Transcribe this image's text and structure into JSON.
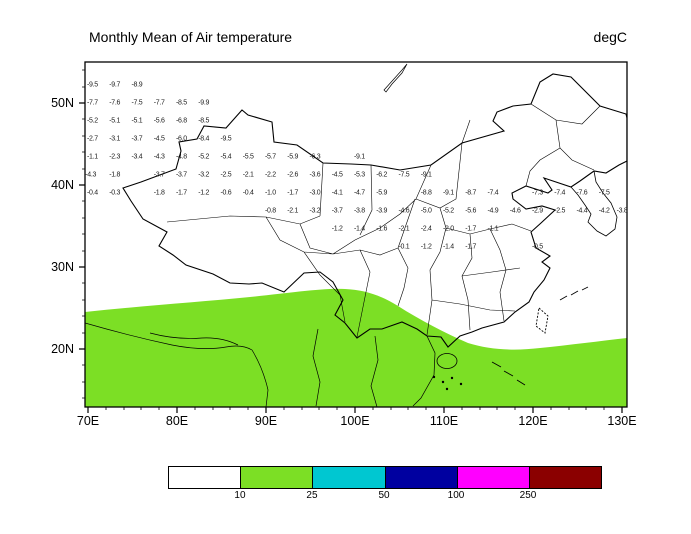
{
  "header": {
    "title": "Monthly Mean of Air temperature",
    "units": "degC"
  },
  "axes": {
    "lat_ticks": [
      {
        "label": "50N"
      },
      {
        "label": "40N"
      },
      {
        "label": "30N"
      },
      {
        "label": "20N"
      }
    ],
    "lon_ticks": [
      {
        "label": "70E"
      },
      {
        "label": "80E"
      },
      {
        "label": "90E"
      },
      {
        "label": "100E"
      },
      {
        "label": "110E"
      },
      {
        "label": "120E"
      },
      {
        "label": "130E"
      }
    ]
  },
  "colorbar": {
    "segments": [
      {
        "color": "#FFFFFF"
      },
      {
        "color": "#7CDF25"
      },
      {
        "color": "#00C7D1"
      },
      {
        "color": "#0000A0"
      },
      {
        "color": "#FF00FF"
      },
      {
        "color": "#8B0000"
      }
    ],
    "labels": [
      "10",
      "25",
      "50",
      "100",
      "250"
    ]
  },
  "chart_data": {
    "type": "heatmap",
    "title": "Monthly Mean of Air temperature",
    "units": "degC",
    "region": "China map with gridded station values",
    "lon_ticks": [
      70,
      80,
      90,
      100,
      110,
      120,
      130
    ],
    "lat_ticks": [
      20,
      30,
      40,
      50
    ],
    "colorbar_levels": [
      10,
      25,
      50,
      100,
      250
    ],
    "colorbar_colors": [
      "#FFFFFF",
      "#7CDF25",
      "#00C7D1",
      "#0000A0",
      "#FF00FF",
      "#8B0000"
    ],
    "filled_region": {
      "color": "#7CDF25",
      "meaning": "shaded contour band covering the area south of roughly 25N"
    },
    "points": [
      {
        "lon": 70.5,
        "lat": 52.2,
        "v": "-9.5"
      },
      {
        "lon": 73,
        "lat": 52.2,
        "v": "-9.7"
      },
      {
        "lon": 75.5,
        "lat": 52.2,
        "v": "-8.9"
      },
      {
        "lon": 70.5,
        "lat": 50,
        "v": "-7.7"
      },
      {
        "lon": 73,
        "lat": 50,
        "v": "-7.6"
      },
      {
        "lon": 75.5,
        "lat": 50,
        "v": "-7.5"
      },
      {
        "lon": 78,
        "lat": 50,
        "v": "-7.7"
      },
      {
        "lon": 80.5,
        "lat": 50,
        "v": "-8.5"
      },
      {
        "lon": 83,
        "lat": 50,
        "v": "-9.9"
      },
      {
        "lon": 70.5,
        "lat": 47.8,
        "v": "-5.2"
      },
      {
        "lon": 73,
        "lat": 47.8,
        "v": "-5.1"
      },
      {
        "lon": 75.5,
        "lat": 47.8,
        "v": "-5.1"
      },
      {
        "lon": 78,
        "lat": 47.8,
        "v": "-5.6"
      },
      {
        "lon": 80.5,
        "lat": 47.8,
        "v": "-6.8"
      },
      {
        "lon": 83,
        "lat": 47.8,
        "v": "-8.5"
      },
      {
        "lon": 70.5,
        "lat": 45.6,
        "v": "-2.7"
      },
      {
        "lon": 73,
        "lat": 45.6,
        "v": "-3.1"
      },
      {
        "lon": 75.5,
        "lat": 45.6,
        "v": "-3.7"
      },
      {
        "lon": 78,
        "lat": 45.6,
        "v": "-4.5"
      },
      {
        "lon": 80.5,
        "lat": 45.6,
        "v": "-6.0"
      },
      {
        "lon": 83,
        "lat": 45.6,
        "v": "-8.4"
      },
      {
        "lon": 85.5,
        "lat": 45.6,
        "v": "-9.5"
      },
      {
        "lon": 70.5,
        "lat": 43.4,
        "v": "-1.1"
      },
      {
        "lon": 73,
        "lat": 43.4,
        "v": "-2.3"
      },
      {
        "lon": 75.5,
        "lat": 43.4,
        "v": "-3.4"
      },
      {
        "lon": 78,
        "lat": 43.4,
        "v": "-4.3"
      },
      {
        "lon": 80.5,
        "lat": 43.4,
        "v": "-4.8"
      },
      {
        "lon": 83,
        "lat": 43.4,
        "v": "-5.2"
      },
      {
        "lon": 85.5,
        "lat": 43.4,
        "v": "-5.4"
      },
      {
        "lon": 88,
        "lat": 43.4,
        "v": "-5.5"
      },
      {
        "lon": 90.5,
        "lat": 43.4,
        "v": "-5.7"
      },
      {
        "lon": 93,
        "lat": 43.4,
        "v": "-5.9"
      },
      {
        "lon": 95.5,
        "lat": 43.4,
        "v": "-6.3"
      },
      {
        "lon": 100.5,
        "lat": 43.4,
        "v": "-9.1"
      },
      {
        "lon": 70.3,
        "lat": 41.2,
        "v": "-4.3"
      },
      {
        "lon": 73,
        "lat": 41.2,
        "v": "-1.8"
      },
      {
        "lon": 78,
        "lat": 41.2,
        "v": "-3.7"
      },
      {
        "lon": 80.5,
        "lat": 41.2,
        "v": "-3.7"
      },
      {
        "lon": 83,
        "lat": 41.2,
        "v": "-3.2"
      },
      {
        "lon": 85.5,
        "lat": 41.2,
        "v": "-2.5"
      },
      {
        "lon": 88,
        "lat": 41.2,
        "v": "-2.1"
      },
      {
        "lon": 90.5,
        "lat": 41.2,
        "v": "-2.2"
      },
      {
        "lon": 93,
        "lat": 41.2,
        "v": "-2.6"
      },
      {
        "lon": 95.5,
        "lat": 41.2,
        "v": "-3.6"
      },
      {
        "lon": 98,
        "lat": 41.2,
        "v": "-4.5"
      },
      {
        "lon": 100.5,
        "lat": 41.2,
        "v": "-5.3"
      },
      {
        "lon": 103,
        "lat": 41.2,
        "v": "-6.2"
      },
      {
        "lon": 105.5,
        "lat": 41.2,
        "v": "-7.5"
      },
      {
        "lon": 108,
        "lat": 41.2,
        "v": "-9.1"
      },
      {
        "lon": 70.5,
        "lat": 39,
        "v": "-0.4"
      },
      {
        "lon": 73,
        "lat": 39,
        "v": "-0.3"
      },
      {
        "lon": 78,
        "lat": 39,
        "v": "-1.8"
      },
      {
        "lon": 80.5,
        "lat": 39,
        "v": "-1.7"
      },
      {
        "lon": 83,
        "lat": 39,
        "v": "-1.2"
      },
      {
        "lon": 85.5,
        "lat": 39,
        "v": "-0.6"
      },
      {
        "lon": 88,
        "lat": 39,
        "v": "-0.4"
      },
      {
        "lon": 90.5,
        "lat": 39,
        "v": "-1.0"
      },
      {
        "lon": 93,
        "lat": 39,
        "v": "-1.7"
      },
      {
        "lon": 95.5,
        "lat": 39,
        "v": "-3.0"
      },
      {
        "lon": 98,
        "lat": 39,
        "v": "-4.1"
      },
      {
        "lon": 100.5,
        "lat": 39,
        "v": "-4.7"
      },
      {
        "lon": 103,
        "lat": 39,
        "v": "-5.9"
      },
      {
        "lon": 108,
        "lat": 39,
        "v": "-8.8"
      },
      {
        "lon": 110.5,
        "lat": 39,
        "v": "-9.1"
      },
      {
        "lon": 113,
        "lat": 39,
        "v": "-8.7"
      },
      {
        "lon": 115.5,
        "lat": 39,
        "v": "-7.4"
      },
      {
        "lon": 120.5,
        "lat": 39,
        "v": "-7.3"
      },
      {
        "lon": 123,
        "lat": 39,
        "v": "-7.4"
      },
      {
        "lon": 125.5,
        "lat": 39,
        "v": "-7.6"
      },
      {
        "lon": 128,
        "lat": 39,
        "v": "-7.5"
      },
      {
        "lon": 90.5,
        "lat": 36.8,
        "v": "-0.8"
      },
      {
        "lon": 93,
        "lat": 36.8,
        "v": "-2.1"
      },
      {
        "lon": 95.5,
        "lat": 36.8,
        "v": "-3.2"
      },
      {
        "lon": 98,
        "lat": 36.8,
        "v": "-3.7"
      },
      {
        "lon": 100.5,
        "lat": 36.8,
        "v": "-3.8"
      },
      {
        "lon": 103,
        "lat": 36.8,
        "v": "-3.9"
      },
      {
        "lon": 105.5,
        "lat": 36.8,
        "v": "-4.6"
      },
      {
        "lon": 108,
        "lat": 36.8,
        "v": "-5.0"
      },
      {
        "lon": 110.5,
        "lat": 36.8,
        "v": "-5.2"
      },
      {
        "lon": 113,
        "lat": 36.8,
        "v": "-5.6"
      },
      {
        "lon": 115.5,
        "lat": 36.8,
        "v": "-4.9"
      },
      {
        "lon": 118,
        "lat": 36.8,
        "v": "-4.6"
      },
      {
        "lon": 120.5,
        "lat": 36.8,
        "v": "-2.9"
      },
      {
        "lon": 123,
        "lat": 36.8,
        "v": "-2.5"
      },
      {
        "lon": 125.5,
        "lat": 36.8,
        "v": "-4.4"
      },
      {
        "lon": 128,
        "lat": 36.8,
        "v": "-4.2"
      },
      {
        "lon": 130,
        "lat": 36.8,
        "v": "-3.8"
      },
      {
        "lon": 98,
        "lat": 34.6,
        "v": "-1.2"
      },
      {
        "lon": 100.5,
        "lat": 34.6,
        "v": "-1.4"
      },
      {
        "lon": 103,
        "lat": 34.6,
        "v": "-1.6"
      },
      {
        "lon": 105.5,
        "lat": 34.6,
        "v": "-2.1"
      },
      {
        "lon": 108,
        "lat": 34.6,
        "v": "-2.4"
      },
      {
        "lon": 110.5,
        "lat": 34.6,
        "v": "-2.0"
      },
      {
        "lon": 113,
        "lat": 34.6,
        "v": "-1.7"
      },
      {
        "lon": 115.5,
        "lat": 34.6,
        "v": "-1.1"
      },
      {
        "lon": 105.5,
        "lat": 32.4,
        "v": "-0.1"
      },
      {
        "lon": 108,
        "lat": 32.4,
        "v": "-1.2"
      },
      {
        "lon": 110.5,
        "lat": 32.4,
        "v": "-1.4"
      },
      {
        "lon": 113,
        "lat": 32.4,
        "v": "-1.7"
      },
      {
        "lon": 120.5,
        "lat": 32.4,
        "v": "-0.5"
      }
    ]
  }
}
